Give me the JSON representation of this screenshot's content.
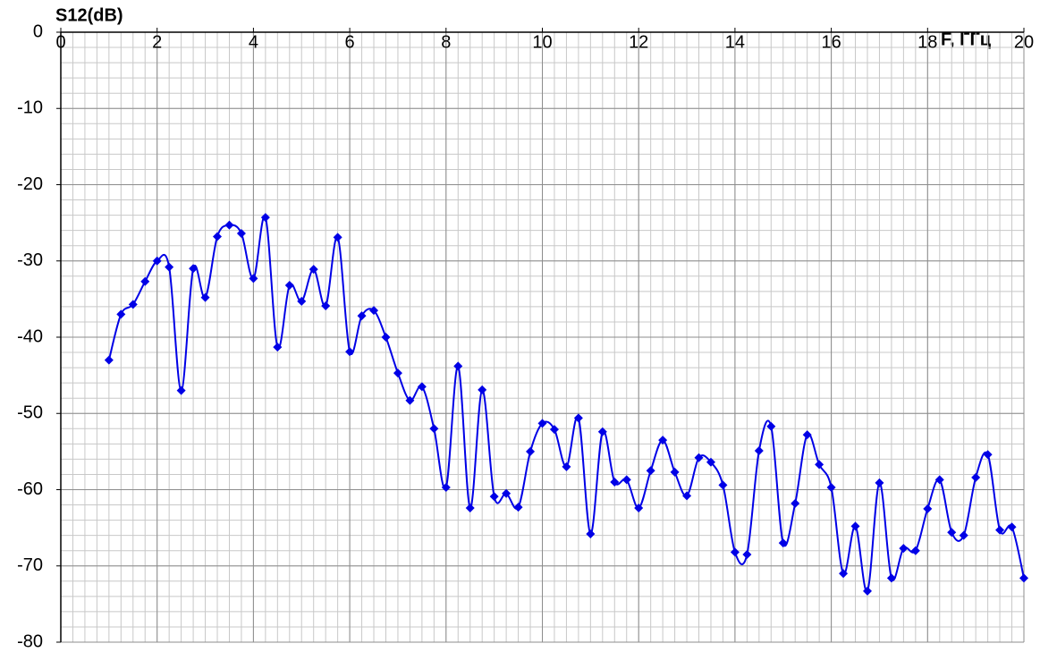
{
  "chart_data": {
    "type": "line",
    "y_label": "S12(dB)",
    "x_label": "F, ГГц",
    "x": [
      1,
      1.25,
      1.5,
      1.75,
      2,
      2.25,
      2.5,
      2.75,
      3,
      3.25,
      3.5,
      3.75,
      4,
      4.25,
      4.5,
      4.75,
      5,
      5.25,
      5.5,
      5.75,
      6,
      6.25,
      6.5,
      6.75,
      7,
      7.25,
      7.5,
      7.75,
      8,
      8.25,
      8.5,
      8.75,
      9,
      9.25,
      9.5,
      9.75,
      10,
      10.25,
      10.5,
      10.75,
      11,
      11.25,
      11.5,
      11.75,
      12,
      12.25,
      12.5,
      12.75,
      13,
      13.25,
      13.5,
      13.75,
      14,
      14.25,
      14.5,
      14.75,
      15,
      15.25,
      15.5,
      15.75,
      16,
      16.25,
      16.5,
      16.75,
      17,
      17.25,
      17.5,
      17.75,
      18,
      18.25,
      18.5,
      18.75,
      19,
      19.25,
      19.5,
      19.75,
      20
    ],
    "series": [
      {
        "name": "S12",
        "color": "#0000e6",
        "values": [
          -43.0,
          -37.0,
          -35.7,
          -32.7,
          -30.0,
          -30.8,
          -47.0,
          -31.0,
          -34.8,
          -26.8,
          -25.3,
          -26.4,
          -32.3,
          -24.3,
          -41.3,
          -33.2,
          -35.3,
          -31.1,
          -35.9,
          -26.9,
          -41.9,
          -37.2,
          -36.5,
          -40.0,
          -44.7,
          -48.3,
          -46.5,
          -52.0,
          -59.7,
          -43.8,
          -62.4,
          -46.9,
          -60.9,
          -60.5,
          -62.3,
          -55.0,
          -51.3,
          -52.1,
          -57.0,
          -50.6,
          -65.8,
          -52.4,
          -59.0,
          -58.7,
          -62.4,
          -57.5,
          -53.5,
          -57.7,
          -60.8,
          -55.8,
          -56.4,
          -59.4,
          -68.2,
          -68.5,
          -54.9,
          -51.7,
          -67.0,
          -61.8,
          -52.8,
          -56.7,
          -59.7,
          -71.0,
          -64.8,
          -73.3,
          -59.1,
          -71.6,
          -67.7,
          -68.0,
          -62.5,
          -58.7,
          -65.6,
          -66.0,
          -58.4,
          -55.4,
          -65.3,
          -64.9,
          -71.6
        ]
      }
    ],
    "xlim": [
      0,
      20
    ],
    "ylim": [
      -80,
      0
    ],
    "xticks": [
      0,
      2,
      4,
      6,
      8,
      10,
      12,
      14,
      16,
      18,
      20
    ],
    "yticks": [
      0,
      -10,
      -20,
      -30,
      -40,
      -50,
      -60,
      -70,
      -80
    ],
    "grid": true,
    "minor_grid": {
      "x": 0.25,
      "y": 2
    }
  }
}
